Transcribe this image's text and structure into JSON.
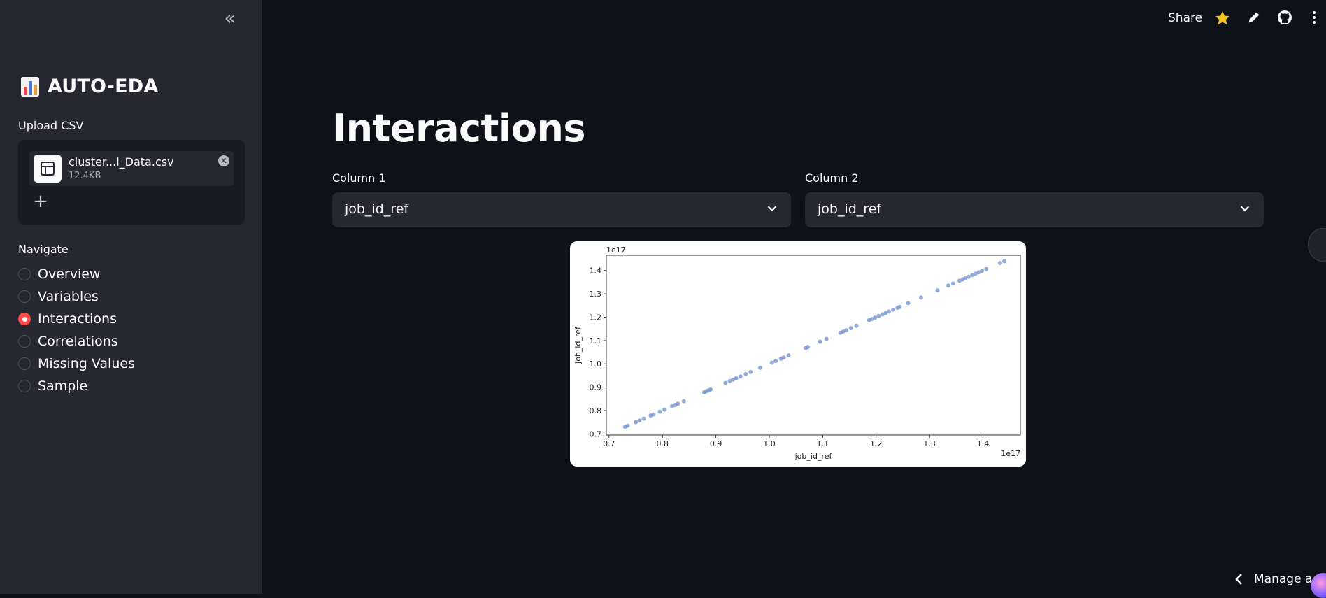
{
  "sidebar": {
    "brand_text": "AUTO-EDA",
    "upload_label": "Upload CSV",
    "file": {
      "name": "cluster...l_Data.csv",
      "size": "12.4KB"
    },
    "navigate_label": "Navigate",
    "nav_items": [
      {
        "label": "Overview",
        "selected": false
      },
      {
        "label": "Variables",
        "selected": false
      },
      {
        "label": "Interactions",
        "selected": true
      },
      {
        "label": "Correlations",
        "selected": false
      },
      {
        "label": "Missing Values",
        "selected": false
      },
      {
        "label": "Sample",
        "selected": false
      }
    ]
  },
  "topbar": {
    "share_label": "Share"
  },
  "main": {
    "title": "Interactions",
    "column1": {
      "label": "Column 1",
      "value": "job_id_ref"
    },
    "column2": {
      "label": "Column 2",
      "value": "job_id_ref"
    }
  },
  "footer": {
    "manage_label": "Manage a"
  },
  "colors": {
    "accent": "#ff4b4b",
    "point": "#6f8fc9",
    "background": "#0e1117",
    "sidebar": "#262730"
  },
  "chart_data": {
    "type": "scatter",
    "xlabel": "job_id_ref",
    "ylabel": "job_id_ref",
    "x_offset_label": "1e17",
    "y_offset_label": "1e17",
    "xlim": [
      0.695,
      1.47
    ],
    "ylim": [
      0.695,
      1.465
    ],
    "x_ticks": [
      "0.7",
      "0.8",
      "0.9",
      "1.0",
      "1.1",
      "1.2",
      "1.3",
      "1.4"
    ],
    "y_ticks": [
      "0.7",
      "0.8",
      "0.9",
      "1.0",
      "1.1",
      "1.2",
      "1.3",
      "1.4"
    ],
    "grid": false,
    "points": [
      [
        0.73,
        0.73
      ],
      [
        0.735,
        0.735
      ],
      [
        0.75,
        0.75
      ],
      [
        0.757,
        0.757
      ],
      [
        0.765,
        0.765
      ],
      [
        0.778,
        0.778
      ],
      [
        0.783,
        0.783
      ],
      [
        0.795,
        0.795
      ],
      [
        0.804,
        0.804
      ],
      [
        0.818,
        0.818
      ],
      [
        0.824,
        0.824
      ],
      [
        0.829,
        0.829
      ],
      [
        0.84,
        0.84
      ],
      [
        0.878,
        0.878
      ],
      [
        0.882,
        0.882
      ],
      [
        0.886,
        0.886
      ],
      [
        0.89,
        0.89
      ],
      [
        0.918,
        0.918
      ],
      [
        0.926,
        0.926
      ],
      [
        0.932,
        0.932
      ],
      [
        0.938,
        0.938
      ],
      [
        0.946,
        0.946
      ],
      [
        0.956,
        0.956
      ],
      [
        0.965,
        0.965
      ],
      [
        0.983,
        0.983
      ],
      [
        1.005,
        1.005
      ],
      [
        1.012,
        1.012
      ],
      [
        1.022,
        1.022
      ],
      [
        1.027,
        1.027
      ],
      [
        1.036,
        1.036
      ],
      [
        1.068,
        1.068
      ],
      [
        1.072,
        1.072
      ],
      [
        1.095,
        1.095
      ],
      [
        1.107,
        1.107
      ],
      [
        1.133,
        1.133
      ],
      [
        1.138,
        1.138
      ],
      [
        1.144,
        1.144
      ],
      [
        1.153,
        1.153
      ],
      [
        1.163,
        1.163
      ],
      [
        1.187,
        1.187
      ],
      [
        1.192,
        1.192
      ],
      [
        1.198,
        1.198
      ],
      [
        1.205,
        1.205
      ],
      [
        1.212,
        1.212
      ],
      [
        1.218,
        1.218
      ],
      [
        1.224,
        1.224
      ],
      [
        1.232,
        1.232
      ],
      [
        1.24,
        1.24
      ],
      [
        1.244,
        1.244
      ],
      [
        1.26,
        1.26
      ],
      [
        1.284,
        1.284
      ],
      [
        1.315,
        1.315
      ],
      [
        1.335,
        1.335
      ],
      [
        1.344,
        1.344
      ],
      [
        1.356,
        1.356
      ],
      [
        1.362,
        1.362
      ],
      [
        1.367,
        1.367
      ],
      [
        1.373,
        1.373
      ],
      [
        1.38,
        1.38
      ],
      [
        1.386,
        1.386
      ],
      [
        1.392,
        1.392
      ],
      [
        1.398,
        1.398
      ],
      [
        1.406,
        1.406
      ],
      [
        1.432,
        1.432
      ],
      [
        1.44,
        1.44
      ]
    ]
  }
}
